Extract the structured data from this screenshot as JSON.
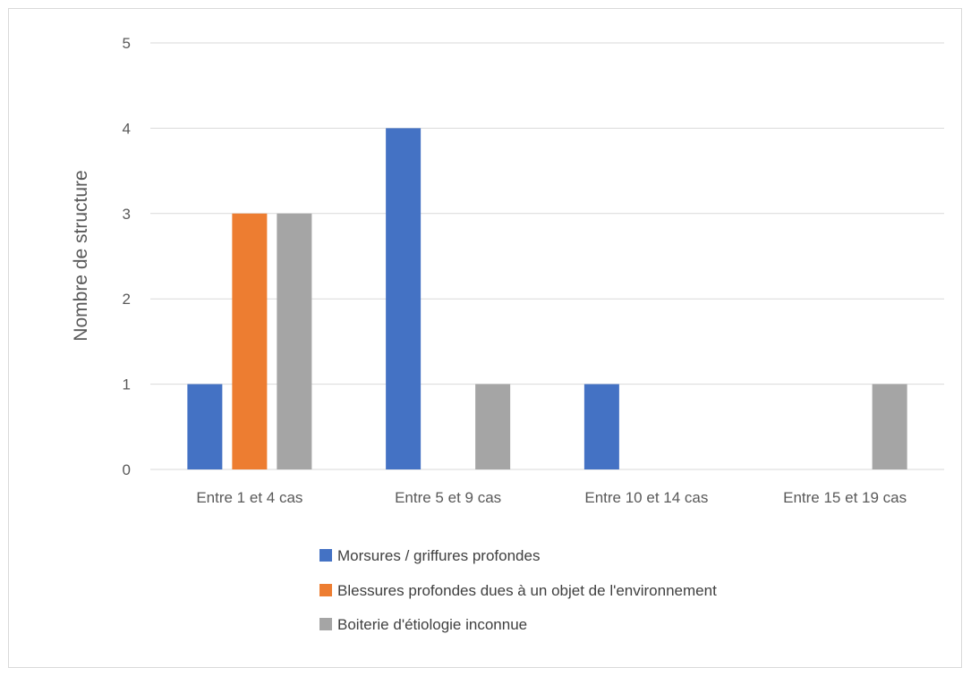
{
  "chart_data": {
    "type": "bar",
    "title": "",
    "xlabel": "",
    "ylabel": "Nombre de structure",
    "ylim": [
      0,
      5
    ],
    "yticks": [
      0,
      1,
      2,
      3,
      4,
      5
    ],
    "grid": true,
    "legend_position": "bottom",
    "categories": [
      "Entre 1 et 4 cas",
      "Entre 5 et 9 cas",
      "Entre 10 et 14 cas",
      "Entre 15 et 19 cas"
    ],
    "series": [
      {
        "name": "Morsures / griffures profondes",
        "color": "#4472c4",
        "values": [
          1,
          4,
          1,
          0
        ]
      },
      {
        "name": "Blessures profondes dues à un objet de l'environnement",
        "color": "#ed7d31",
        "values": [
          3,
          0,
          0,
          0
        ]
      },
      {
        "name": "Boiterie d'étiologie inconnue",
        "color": "#a5a5a5",
        "values": [
          3,
          1,
          0,
          1
        ]
      }
    ]
  }
}
